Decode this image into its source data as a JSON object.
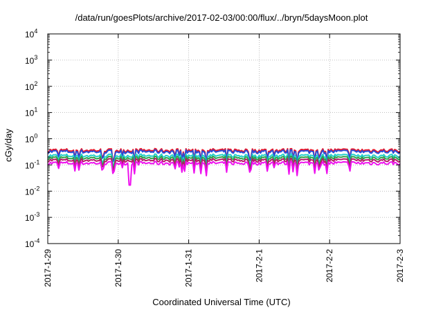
{
  "chart_data": {
    "type": "line",
    "title": "/data/run/goesPlots/archive/2017-02-03/00:00/flux/../bryn/5daysMoon.plot",
    "xlabel": "Coordinated Universal Time (UTC)",
    "ylabel": "cGy/day",
    "y_scale": "log",
    "ylim": [
      0.0001,
      10000
    ],
    "xlim": [
      "2017-01-29T00:00",
      "2017-02-03T00:00"
    ],
    "x_ticks": [
      "2017-1-29",
      "2017-1-30",
      "2017-1-31",
      "2017-2-1",
      "2017-2-2",
      "2017-2-3"
    ],
    "y_ticks": [
      {
        "base": "10",
        "exp": "-4"
      },
      {
        "base": "10",
        "exp": "-3"
      },
      {
        "base": "10",
        "exp": "-2"
      },
      {
        "base": "10",
        "exp": "-1"
      },
      {
        "base": "10",
        "exp": "0"
      },
      {
        "base": "10",
        "exp": "1"
      },
      {
        "base": "10",
        "exp": "2"
      },
      {
        "base": "10",
        "exp": "3"
      },
      {
        "base": "10",
        "exp": "4"
      }
    ],
    "grid": true,
    "series": [
      {
        "color": "#e8192c",
        "level": 0.37,
        "dip": 0.25,
        "values_note": ""
      },
      {
        "color": "#2a4bd7",
        "level": 0.33,
        "dip": 0.22,
        "values_note": ""
      },
      {
        "color": "#22cfc9",
        "level": 0.23,
        "dip": 0.16,
        "values_note": ""
      },
      {
        "color": "#2fa04a",
        "level": 0.19,
        "dip": 0.14,
        "values_note": ""
      },
      {
        "color": "#b41a66",
        "level": 0.155,
        "dip": 0.12,
        "values_note": ""
      },
      {
        "color": "#ee11ee",
        "level": 0.12,
        "dip": 0.07,
        "values_note": ""
      }
    ]
  }
}
